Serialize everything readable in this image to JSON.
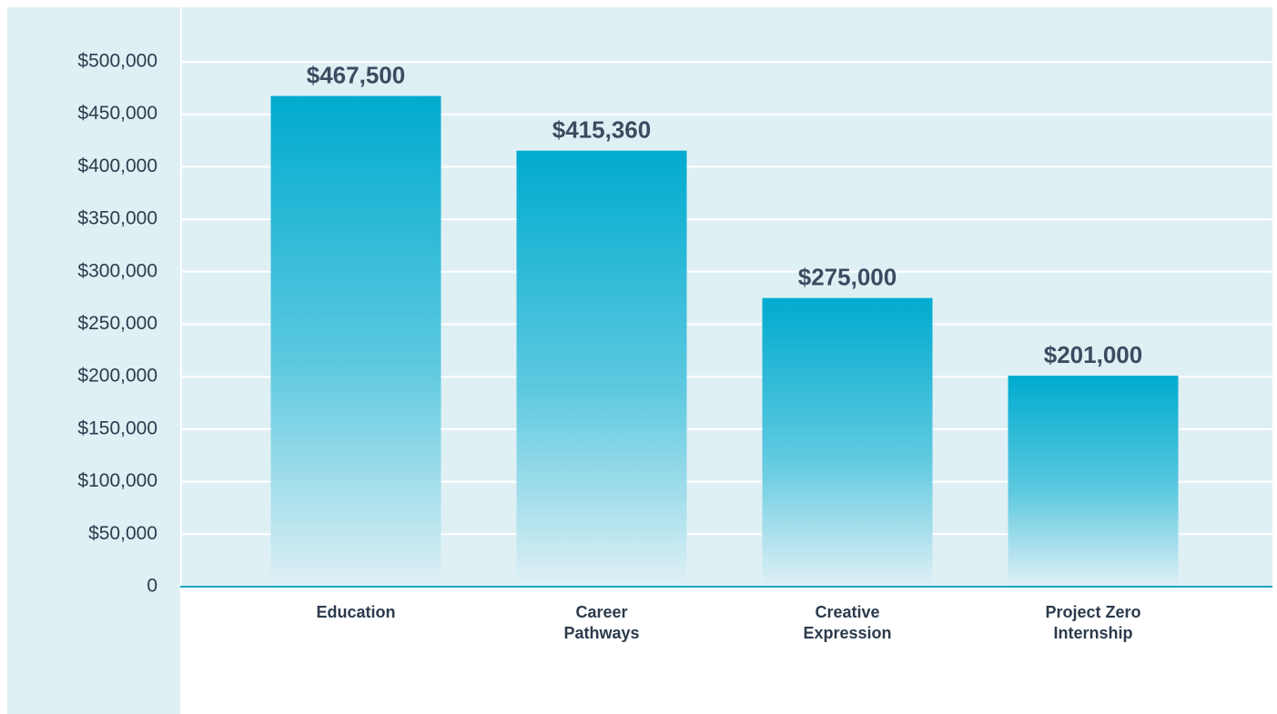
{
  "chart_data": {
    "type": "bar",
    "categories": [
      "Education",
      "Career Pathways",
      "Creative Expression",
      "Project Zero Internship"
    ],
    "values": [
      467500,
      415360,
      275000,
      201000
    ],
    "value_labels": [
      "$467,500",
      "$415,360",
      "$275,000",
      "$201,000"
    ],
    "color": "#00abcf",
    "ylim": [
      0,
      500000
    ],
    "yticks": [
      0,
      {
        "value": 50000,
        "label": "$50,000"
      },
      {
        "value": 100000,
        "label": "$100,000"
      },
      {
        "value": 150000,
        "label": "$150,000"
      },
      {
        "value": 200000,
        "label": "$200,000"
      },
      {
        "value": 250000,
        "label": "$250,000"
      },
      {
        "value": 300000,
        "label": "$300,000"
      },
      {
        "value": 350000,
        "label": "$350,000"
      },
      {
        "value": 400000,
        "label": "$400,000"
      },
      {
        "value": 450000,
        "label": "$450,000"
      },
      {
        "value": 500000,
        "label": "$500,000"
      }
    ],
    "grid": true
  }
}
